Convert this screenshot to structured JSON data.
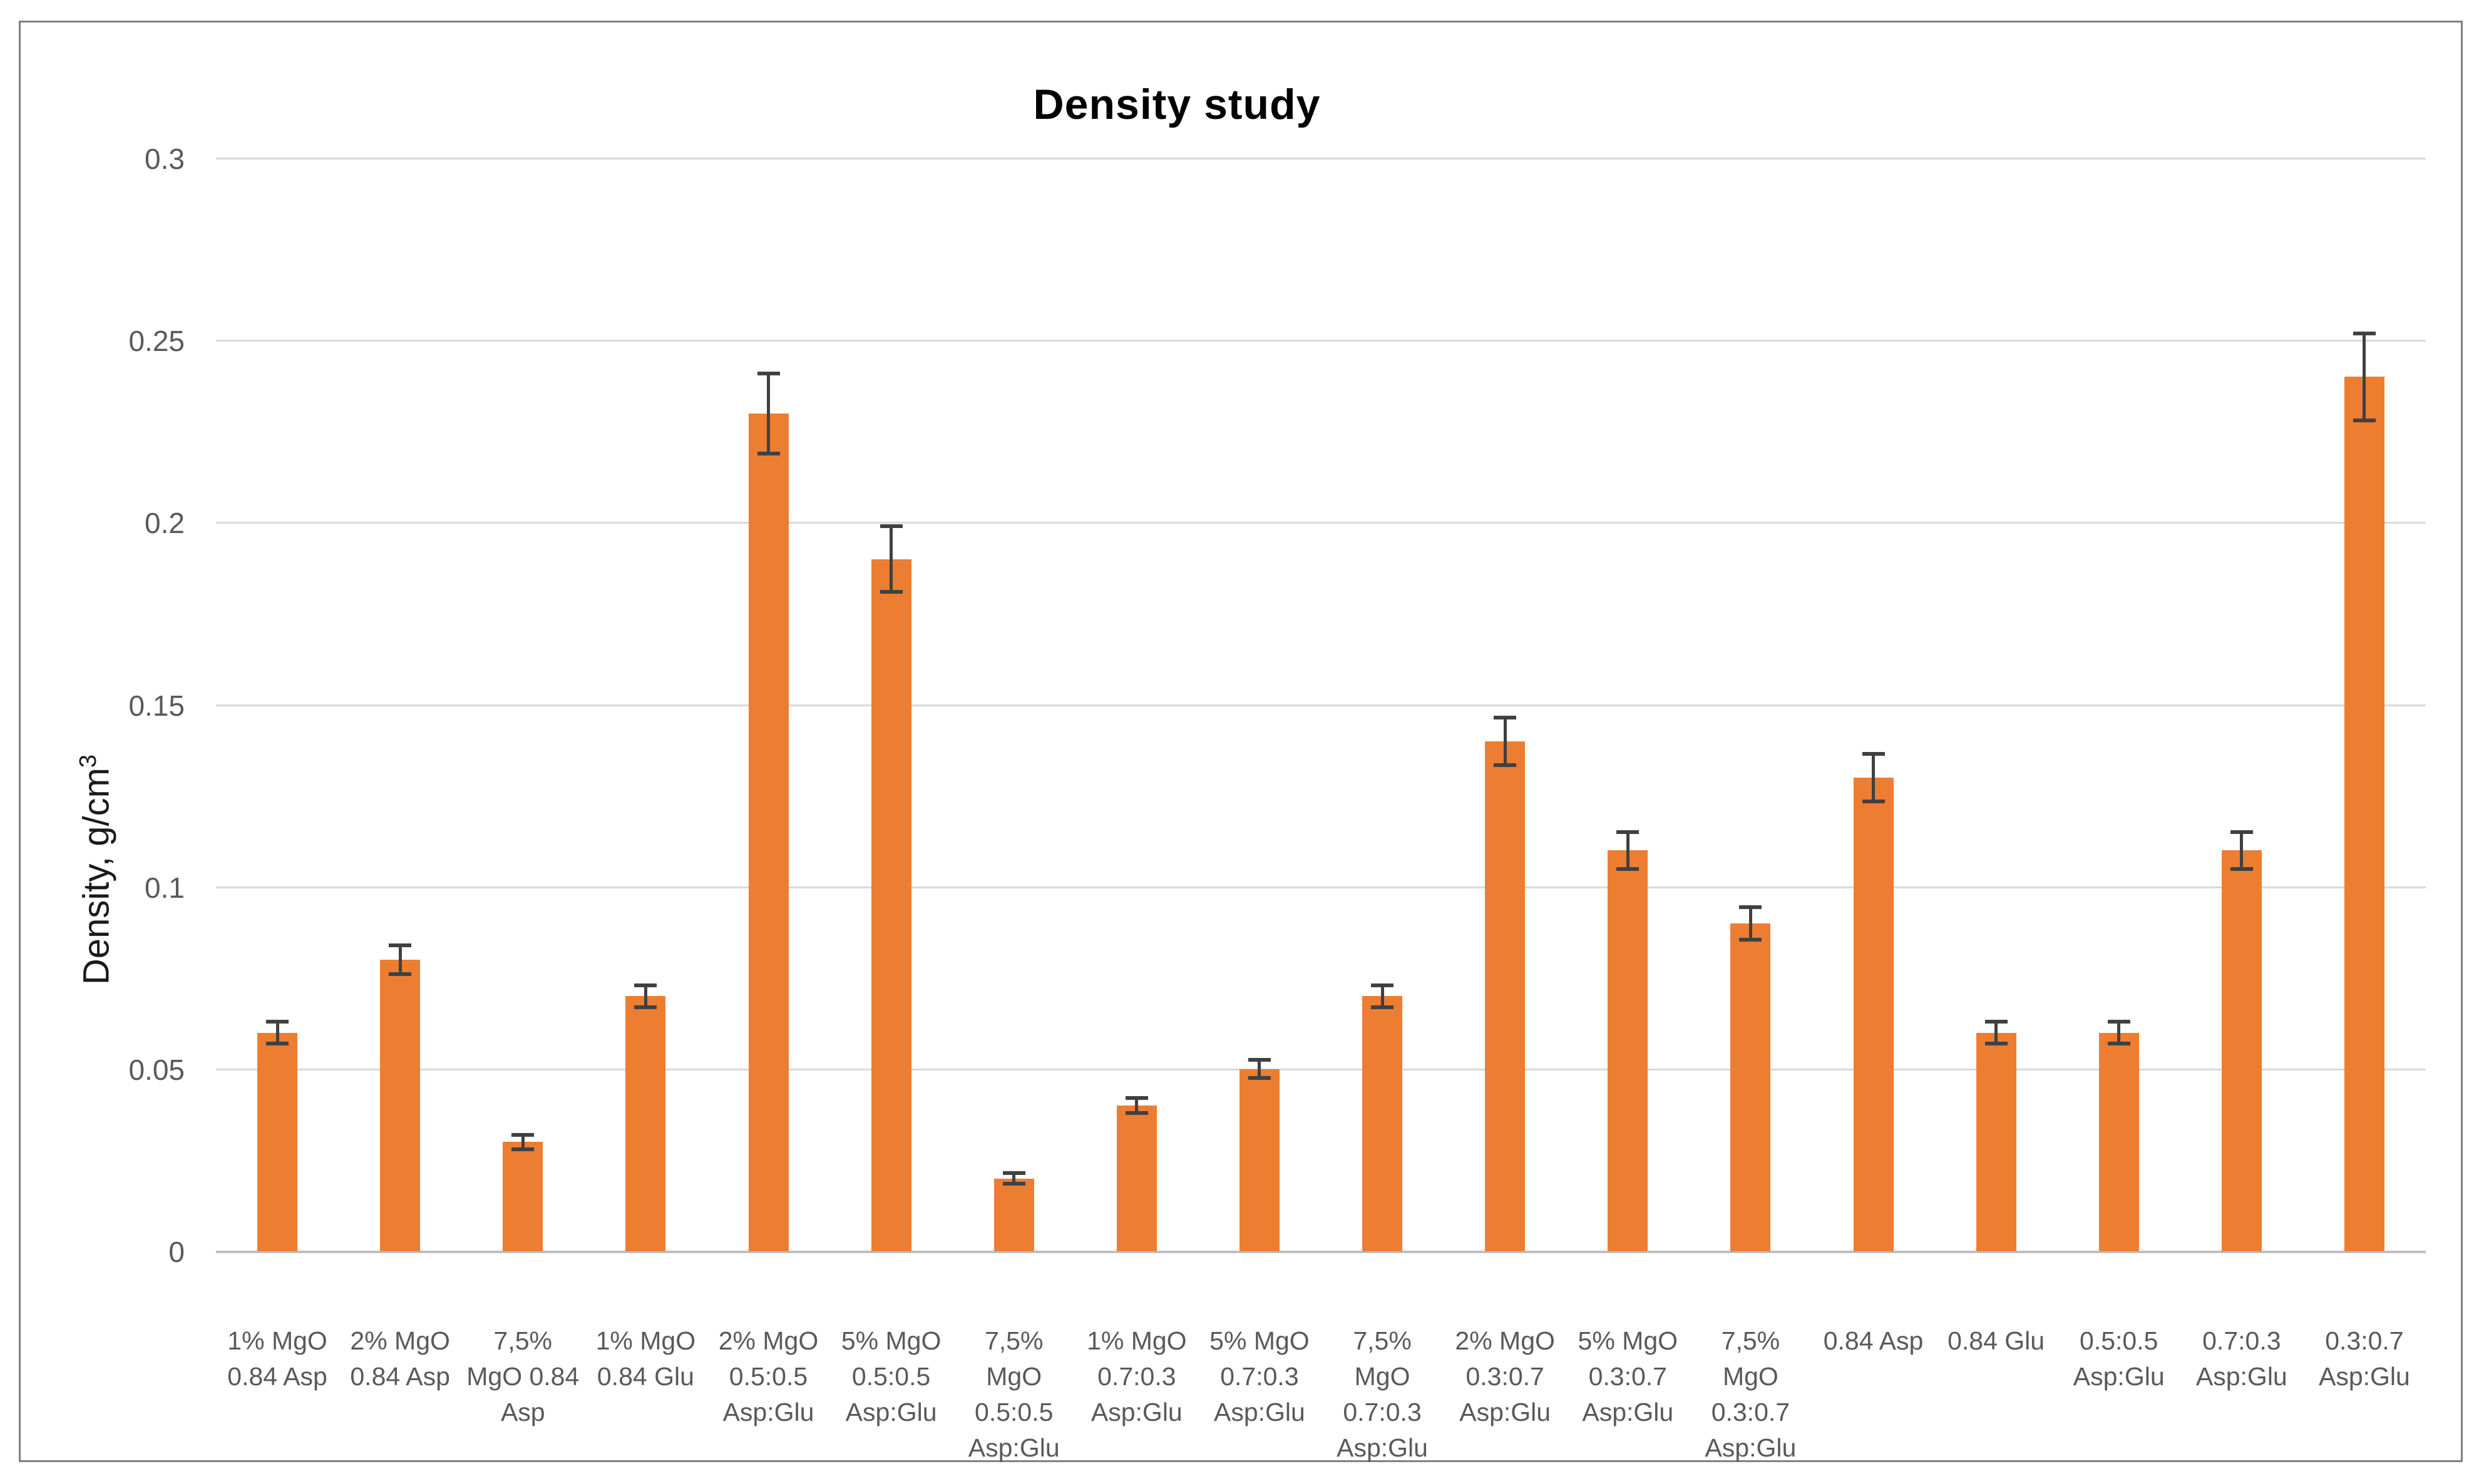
{
  "frame": {
    "border_color": "#808080",
    "background": "#FFFFFF"
  },
  "chart_data": {
    "type": "bar",
    "title": "Density study",
    "ylabel": "Density, g/cm³",
    "ylabel_main": "Density, g/cm",
    "ylabel_sup": "3",
    "xlabel": "",
    "ylim": [
      0,
      0.3
    ],
    "yticks": [
      "0",
      "0.05",
      "0.1",
      "0.15",
      "0.2",
      "0.25",
      "0.3"
    ],
    "ytick_values": [
      0,
      0.05,
      0.1,
      0.15,
      0.2,
      0.25,
      0.3
    ],
    "grid": true,
    "legend": false,
    "bar_color": "#ED7D31",
    "error_bar_color": "#404040",
    "gridline_color": "#D9D9D9",
    "axis_line_color": "#BFBFBF",
    "tick_label_color": "#595959",
    "categories": [
      "1% MgO 0.84 Asp",
      "2% MgO 0.84 Asp",
      "7,5% MgO 0.84 Asp",
      "1% MgO 0.84 Glu",
      "2% MgO 0.5:0.5 Asp:Glu",
      "5% MgO 0.5:0.5 Asp:Glu",
      "7,5% MgO 0.5:0.5 Asp:Glu",
      "1% MgO 0.7:0.3 Asp:Glu",
      "5% MgO 0.7:0.3 Asp:Glu",
      "7,5% MgO 0.7:0.3 Asp:Glu",
      "2% MgO 0.3:0.7 Asp:Glu",
      "5% MgO 0.3:0.7 Asp:Glu",
      "7,5% MgO 0.3:0.7 Asp:Glu",
      "0.84 Asp",
      "0.84 Glu",
      "0.5:0.5 Asp:Glu",
      "0.7:0.3 Asp:Glu",
      "0.3:0.7 Asp:Glu"
    ],
    "category_lines": [
      [
        "1% MgO",
        "0.84 Asp"
      ],
      [
        "2% MgO",
        "0.84 Asp"
      ],
      [
        "7,5%",
        "MgO 0.84",
        "Asp"
      ],
      [
        "1% MgO",
        "0.84 Glu"
      ],
      [
        "2% MgO",
        "0.5:0.5",
        "Asp:Glu"
      ],
      [
        "5% MgO",
        "0.5:0.5",
        "Asp:Glu"
      ],
      [
        "7,5%",
        "MgO",
        "0.5:0.5",
        "Asp:Glu"
      ],
      [
        "1% MgO",
        "0.7:0.3",
        "Asp:Glu"
      ],
      [
        "5% MgO",
        "0.7:0.3",
        "Asp:Glu"
      ],
      [
        "7,5%",
        "MgO",
        "0.7:0.3",
        "Asp:Glu"
      ],
      [
        "2% MgO",
        "0.3:0.7",
        "Asp:Glu"
      ],
      [
        "5% MgO",
        "0.3:0.7",
        "Asp:Glu"
      ],
      [
        "7,5%",
        "MgO",
        "0.3:0.7",
        "Asp:Glu"
      ],
      [
        "0.84 Asp"
      ],
      [
        "0.84 Glu"
      ],
      [
        "0.5:0.5",
        "Asp:Glu"
      ],
      [
        "0.7:0.3",
        "Asp:Glu"
      ],
      [
        "0.3:0.7",
        "Asp:Glu"
      ]
    ],
    "values": [
      0.06,
      0.08,
      0.03,
      0.07,
      0.23,
      0.19,
      0.02,
      0.04,
      0.05,
      0.07,
      0.14,
      0.11,
      0.09,
      0.13,
      0.06,
      0.06,
      0.11,
      0.24
    ],
    "errors": [
      0.003,
      0.004,
      0.002,
      0.003,
      0.011,
      0.009,
      0.0015,
      0.002,
      0.0025,
      0.003,
      0.0065,
      0.005,
      0.0045,
      0.0065,
      0.003,
      0.003,
      0.005,
      0.012
    ]
  }
}
